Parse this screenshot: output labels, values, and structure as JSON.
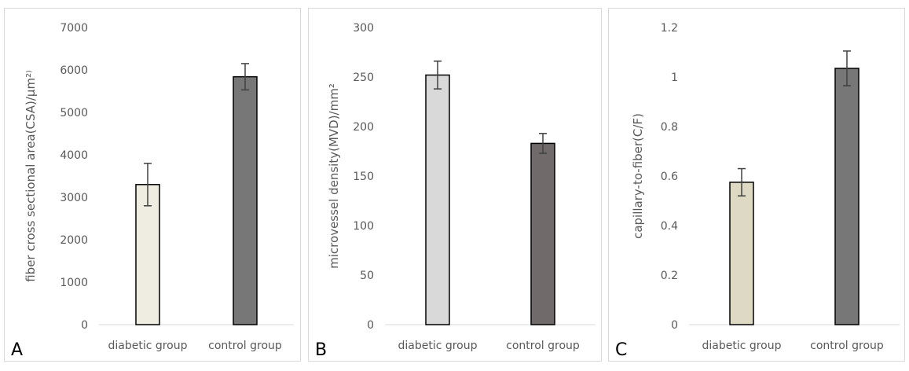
{
  "chart_data": [
    {
      "type": "bar",
      "panel_label": "A",
      "ylabel": "fiber cross sectional area(CSA)/μm²⁾",
      "categories": [
        "diabetic group",
        "control group"
      ],
      "values": [
        3300,
        5840
      ],
      "errors": [
        500,
        310
      ],
      "ylim": [
        0,
        7000
      ],
      "yticks": [
        "0",
        "1000",
        "2000",
        "3000",
        "4000",
        "5000",
        "6000",
        "7000"
      ],
      "colors": [
        "#efede2",
        "#777777"
      ]
    },
    {
      "type": "bar",
      "panel_label": "B",
      "ylabel": "microvessel density(MVD)/mm²",
      "categories": [
        "diabetic group",
        "control group"
      ],
      "values": [
        252,
        183
      ],
      "errors": [
        14,
        10
      ],
      "ylim": [
        0,
        300
      ],
      "yticks": [
        "0",
        "50",
        "100",
        "150",
        "200",
        "250",
        "300"
      ],
      "colors": [
        "#d9d9d9",
        "#716a6a"
      ]
    },
    {
      "type": "bar",
      "panel_label": "C",
      "ylabel": "capillary-to-fiber(C/F)",
      "categories": [
        "diabetic group",
        "control group"
      ],
      "values": [
        0.575,
        1.035
      ],
      "errors": [
        0.055,
        0.07
      ],
      "ylim": [
        0,
        1.2
      ],
      "yticks": [
        "0",
        "0.2",
        "0.4",
        "0.6",
        "0.8",
        "1",
        "1.2"
      ],
      "colors": [
        "#ddd9c3",
        "#777777"
      ]
    }
  ]
}
